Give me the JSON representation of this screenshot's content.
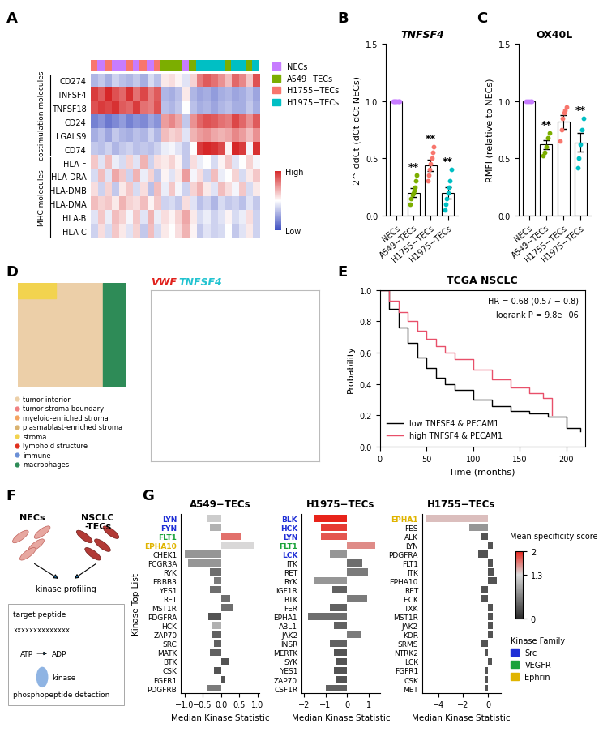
{
  "chart_data": [
    {
      "panel": "A",
      "type": "heatmap",
      "rows": [
        "CD274",
        "TNFSF4",
        "TNFSF18",
        "CD24",
        "LGALS9",
        "CD74",
        "HLA-F",
        "HLA-DRA",
        "HLA-DMB",
        "HLA-DMA",
        "HLA-B",
        "HLA-C"
      ],
      "columns": [
        "H1755−TECs",
        "NECs",
        "H1755−TECs",
        "NECs",
        "NECs",
        "H1755−TECs",
        "NECs",
        "H1755−TECs",
        "NECs",
        "H1755−TECs",
        "A549−TECs",
        "A549−TECs",
        "A549−TECs",
        "NECs",
        "A549−TECs",
        "H1975−TECs",
        "H1975−TECs",
        "H1975−TECs",
        "H1975−TECs",
        "A549−TECs",
        "H1975−TECs",
        "H1975−TECs",
        "A549−TECs",
        "H1975−TECs"
      ],
      "cells": [
        [
          -0.8,
          -0.6,
          -0.9,
          -0.5,
          -0.7,
          -0.8,
          -0.6,
          -0.9,
          -0.4,
          -0.7,
          0.2,
          0.3,
          0.1,
          -0.3,
          0.4,
          1.2,
          1.5,
          1.3,
          1.0,
          0.6,
          1.4,
          1.1,
          0.5,
          1.6
        ],
        [
          1.8,
          1.5,
          2.0,
          1.6,
          1.4,
          1.9,
          1.3,
          1.7,
          1.2,
          1.5,
          -0.8,
          -0.9,
          -0.7,
          0.2,
          -0.8,
          -1.0,
          -0.9,
          -1.1,
          -0.9,
          -0.8,
          -1.0,
          -0.9,
          -0.7,
          -1.0
        ],
        [
          1.6,
          1.8,
          1.7,
          1.9,
          1.5,
          1.4,
          1.8,
          1.3,
          1.2,
          1.6,
          -0.7,
          -0.8,
          -0.6,
          0.0,
          -0.7,
          -0.9,
          -0.8,
          -1.0,
          -0.8,
          -0.7,
          -0.9,
          -0.9,
          -0.6,
          -0.9
        ],
        [
          -1.4,
          -1.2,
          -1.5,
          -1.3,
          -1.1,
          -1.4,
          -1.2,
          -1.3,
          -1.0,
          -1.2,
          0.9,
          1.1,
          0.8,
          -0.6,
          1.0,
          1.4,
          1.6,
          1.5,
          1.3,
          1.2,
          1.7,
          1.4,
          1.0,
          1.5
        ],
        [
          -0.9,
          -0.7,
          -1.0,
          -0.6,
          -0.8,
          -0.9,
          -0.7,
          -0.8,
          -0.5,
          -0.8,
          0.6,
          0.4,
          0.5,
          -0.3,
          0.7,
          0.9,
          1.0,
          0.8,
          0.7,
          0.8,
          1.1,
          0.9,
          0.6,
          1.0
        ],
        [
          -0.6,
          -0.7,
          -0.5,
          -0.8,
          -0.6,
          -0.5,
          -0.7,
          -0.6,
          -0.7,
          -0.5,
          -0.2,
          -0.1,
          -0.3,
          -0.6,
          0.0,
          1.8,
          2.0,
          1.9,
          1.7,
          0.1,
          2.0,
          1.8,
          -0.1,
          1.9
        ],
        [
          0.5,
          -0.3,
          0.6,
          -0.2,
          -0.4,
          0.4,
          -0.3,
          0.7,
          -0.5,
          0.3,
          0.2,
          0.4,
          0.1,
          -0.6,
          0.3,
          -0.2,
          0.0,
          -0.4,
          0.1,
          0.5,
          -0.3,
          0.0,
          0.4,
          -0.1
        ],
        [
          -0.4,
          0.6,
          -0.3,
          0.8,
          0.5,
          -0.5,
          0.7,
          -0.2,
          0.4,
          -0.6,
          0.1,
          -0.3,
          0.2,
          0.9,
          -0.1,
          0.3,
          -0.5,
          0.6,
          -0.2,
          0.0,
          0.4,
          -0.4,
          0.2,
          0.5
        ],
        [
          0.3,
          -0.5,
          0.4,
          -0.6,
          0.2,
          0.5,
          -0.4,
          0.3,
          -0.7,
          0.6,
          -0.2,
          0.5,
          -0.1,
          -0.5,
          0.4,
          0.7,
          0.2,
          -0.3,
          0.6,
          0.3,
          -0.1,
          0.5,
          -0.4,
          0.2
        ],
        [
          0.6,
          0.4,
          0.5,
          0.2,
          0.7,
          0.4,
          0.3,
          0.6,
          0.1,
          0.5,
          -0.5,
          -0.4,
          -0.6,
          0.3,
          -0.3,
          -0.7,
          -0.5,
          -0.8,
          -0.4,
          -0.6,
          -0.5,
          -0.7,
          -0.3,
          -0.6
        ],
        [
          -0.3,
          0.5,
          -0.2,
          0.6,
          0.4,
          -0.1,
          0.5,
          -0.3,
          0.7,
          -0.2,
          0.3,
          0.1,
          0.4,
          0.8,
          0.2,
          -0.4,
          -0.2,
          -0.5,
          -0.3,
          0.1,
          -0.4,
          -0.2,
          0.3,
          -0.5
        ],
        [
          -0.5,
          0.3,
          -0.4,
          0.5,
          0.2,
          -0.3,
          0.4,
          -0.6,
          0.6,
          -0.4,
          0.2,
          0.0,
          0.3,
          0.7,
          0.1,
          -0.6,
          -0.3,
          -0.5,
          -0.4,
          0.0,
          -0.6,
          -0.3,
          0.2,
          -0.5
        ]
      ],
      "row_groups": [
        {
          "name": "costimulation molecules",
          "from": "CD274",
          "to": "CD74"
        },
        {
          "name": "MHC molecules",
          "from": "HLA-F",
          "to": "HLA-C"
        }
      ],
      "group_colors": [
        {
          "name": "NECs",
          "color": "#C77CFF"
        },
        {
          "name": "A549−TECs",
          "color": "#7CAE00"
        },
        {
          "name": "H1755−TECs",
          "color": "#F8766D"
        },
        {
          "name": "H1975−TECs",
          "color": "#00BFC4"
        }
      ],
      "colorbar": {
        "range": [
          -2,
          2
        ],
        "ticks": [
          {
            "value": 2,
            "label": "High"
          },
          {
            "value": -2,
            "label": "Low"
          }
        ]
      }
    },
    {
      "panel": "B",
      "type": "bar",
      "title": "TNFSF4",
      "y_label": "2^-ddCt (dCt-dCt NECs)",
      "categories": [
        "NECs",
        "A549−TECs",
        "H1755−TECs",
        "H1975−TECs"
      ],
      "values": [
        1.0,
        0.2,
        0.44,
        0.2
      ],
      "errors": [
        0,
        0.04,
        0.05,
        0.05
      ],
      "points": [
        [
          1.0,
          1.0,
          1.0,
          1.0,
          1.0,
          1.0,
          1.0,
          1.0
        ],
        [
          0.1,
          0.15,
          0.18,
          0.2,
          0.22,
          0.25,
          0.3,
          0.35
        ],
        [
          0.3,
          0.35,
          0.4,
          0.45,
          0.5,
          0.55,
          0.6
        ],
        [
          0.05,
          0.1,
          0.15,
          0.2,
          0.25,
          0.3,
          0.4
        ]
      ],
      "colors": [
        "#C77CFF",
        "#7CAE00",
        "#F8766D",
        "#00BFC4"
      ],
      "annotations": [
        null,
        "**",
        "**",
        "**"
      ],
      "ylim": [
        0,
        1.5
      ],
      "yticks": [
        {
          "value": 0,
          "label": "0.0"
        },
        {
          "value": 0.5,
          "label": "0.5"
        },
        {
          "value": 1.0,
          "label": "1.0"
        },
        {
          "value": 1.5,
          "label": "1.5"
        }
      ]
    },
    {
      "panel": "C",
      "type": "bar",
      "title": "OX40L",
      "y_label": "RMFI (relative to NECs)",
      "categories": [
        "NECs",
        "A549−TECs",
        "H1755−TECs",
        "H1975−TECs"
      ],
      "values": [
        1.0,
        0.62,
        0.82,
        0.64
      ],
      "errors": [
        0,
        0.04,
        0.06,
        0.08
      ],
      "points": [
        [
          1.0,
          1.0,
          1.0,
          1.0,
          1.0
        ],
        [
          0.52,
          0.55,
          0.6,
          0.68,
          0.72
        ],
        [
          0.65,
          0.75,
          0.85,
          0.9,
          0.92,
          0.95
        ],
        [
          0.42,
          0.5,
          0.62,
          0.75,
          0.85
        ]
      ],
      "colors": [
        "#C77CFF",
        "#7CAE00",
        "#F8766D",
        "#00BFC4"
      ],
      "annotations": [
        null,
        "**",
        null,
        "**"
      ],
      "ylim": [
        0,
        1.5
      ],
      "yticks": [
        {
          "value": 0,
          "label": "0.0"
        },
        {
          "value": 0.5,
          "label": "0.5"
        },
        {
          "value": 1.0,
          "label": "1.0"
        },
        {
          "value": 1.5,
          "label": "1.5"
        }
      ]
    },
    {
      "panel": "E",
      "type": "line",
      "title": "TCGA NSCLC",
      "annotations": [
        "HR = 0.68 (0.57 − 0.8)",
        "logrank P = 9.8e−06"
      ],
      "x_label": "Time (months)",
      "y_label": "Probability",
      "series": [
        {
          "name": "low TNFSF4 & PECAM1",
          "color": "#000000",
          "line_style": "steps",
          "x": [
            0,
            10,
            20,
            30,
            40,
            50,
            60,
            70,
            80,
            100,
            120,
            140,
            160,
            180,
            200,
            215
          ],
          "values": [
            1.0,
            0.88,
            0.76,
            0.66,
            0.57,
            0.5,
            0.44,
            0.4,
            0.36,
            0.3,
            0.26,
            0.23,
            0.21,
            0.19,
            0.12,
            0.1
          ]
        },
        {
          "name": "high TNFSF4 & PECAM1",
          "color": "#E8506A",
          "line_style": "steps",
          "x": [
            0,
            10,
            20,
            30,
            40,
            50,
            60,
            70,
            80,
            100,
            120,
            140,
            160,
            175,
            185
          ],
          "values": [
            1.0,
            0.93,
            0.86,
            0.8,
            0.74,
            0.69,
            0.64,
            0.6,
            0.56,
            0.49,
            0.43,
            0.38,
            0.34,
            0.31,
            0.2
          ]
        }
      ],
      "xlim": [
        0,
        220
      ],
      "xticks": [
        0,
        50,
        100,
        150,
        200
      ],
      "ylim": [
        0,
        1.0
      ],
      "yticks": [
        {
          "value": 0,
          "label": "0.0"
        },
        {
          "value": 0.2,
          "label": "0.2"
        },
        {
          "value": 0.4,
          "label": "0.4"
        },
        {
          "value": 0.6,
          "label": "0.6"
        },
        {
          "value": 0.8,
          "label": "0.8"
        },
        {
          "value": 1.0,
          "label": "1.0"
        }
      ],
      "legend": "lower left"
    },
    {
      "panel": "G",
      "type": "bar",
      "orientation": "horizontal",
      "title": "A549−TECs",
      "x_label": "Median Kinase Statistic",
      "y_label": "Kinase Top List",
      "categories": [
        "LYN",
        "FYN",
        "FLT1",
        "EPHA10",
        "CHEK1",
        "FCGR3A",
        "RYK",
        "ERBB3",
        "YES1",
        "RET",
        "MST1R",
        "PDGFRA",
        "HCK",
        "ZAP70",
        "SRC",
        "MATK",
        "BTK",
        "CSK",
        "FGFR1",
        "PDGFRB"
      ],
      "values": [
        -0.4,
        -0.3,
        0.55,
        0.9,
        -1.0,
        -0.9,
        -0.3,
        -0.2,
        -0.3,
        0.25,
        0.35,
        -0.35,
        -0.25,
        -0.25,
        -0.2,
        -0.3,
        0.2,
        -0.2,
        0.1,
        -0.4
      ],
      "scores": [
        1.2,
        1.0,
        1.7,
        1.3,
        0.8,
        0.8,
        0.5,
        0.6,
        0.5,
        0.5,
        0.5,
        0.3,
        1.0,
        0.4,
        0.4,
        0.4,
        0.3,
        0.3,
        0.3,
        0.6
      ],
      "families": [
        "Src",
        "Src",
        "VEGFR",
        "Ephrin",
        null,
        null,
        null,
        null,
        null,
        null,
        null,
        null,
        null,
        null,
        null,
        null,
        null,
        null,
        null,
        null
      ],
      "xlim": [
        -1.1,
        1.05
      ],
      "xticks": [
        {
          "value": -1.0,
          "label": "−1.0"
        },
        {
          "value": -0.5,
          "label": "−0.5"
        },
        {
          "value": 0.0,
          "label": "0.0"
        },
        {
          "value": 0.5,
          "label": "0.5"
        },
        {
          "value": 1.0,
          "label": "1.0"
        }
      ]
    },
    {
      "type": "bar",
      "orientation": "horizontal",
      "title": "H1975−TECs",
      "x_label": "Median Kinase Statistic",
      "categories": [
        "BLK",
        "HCK",
        "LYN",
        "FLT1",
        "LCK",
        "ITK",
        "RET",
        "RYK",
        "IGF1R",
        "BTK",
        "FER",
        "EPHA1",
        "ABL1",
        "JAK2",
        "INSR",
        "MERTK",
        "SYK",
        "YES1",
        "ZAP70",
        "CSF1R"
      ],
      "values": [
        -1.5,
        -1.2,
        -1.2,
        1.3,
        -0.8,
        0.7,
        0.95,
        -1.5,
        -0.7,
        0.9,
        -0.8,
        -1.8,
        -0.6,
        0.6,
        -0.8,
        -0.6,
        -0.5,
        -0.6,
        -0.5,
        -1.0
      ],
      "scores": [
        2.0,
        1.9,
        1.8,
        1.6,
        0.8,
        0.5,
        0.6,
        0.8,
        0.4,
        0.6,
        0.4,
        0.5,
        0.4,
        0.6,
        0.4,
        0.3,
        0.3,
        0.3,
        0.3,
        0.4
      ],
      "families": [
        "Src",
        "Src",
        "Src",
        "VEGFR",
        "Src",
        null,
        null,
        null,
        null,
        null,
        null,
        null,
        null,
        null,
        null,
        null,
        null,
        null,
        null,
        null
      ],
      "xlim": [
        -2.1,
        1.5
      ],
      "xticks": [
        {
          "value": -2,
          "label": "−2"
        },
        {
          "value": -1,
          "label": "−1"
        },
        0,
        1
      ]
    },
    {
      "type": "bar",
      "orientation": "horizontal",
      "title": "H1755−TECs",
      "x_label": "Median Kinase Statistic",
      "categories": [
        "EPHA1",
        "FES",
        "ALK",
        "LYN",
        "PDGFRA",
        "FLT1",
        "ITK",
        "EPHA10",
        "RET",
        "HCK",
        "TXK",
        "MST1R",
        "JAK2",
        "KDR",
        "SRMS",
        "NTRK2",
        "LCK",
        "FGFR1",
        "CSK",
        "MET"
      ],
      "values": [
        -5.0,
        -1.5,
        -0.6,
        0.4,
        -0.8,
        0.4,
        0.5,
        0.7,
        -0.5,
        -0.5,
        0.4,
        0.4,
        0.4,
        0.4,
        -0.5,
        -0.3,
        0.3,
        -0.3,
        -0.3,
        -0.3
      ],
      "scores": [
        1.4,
        0.8,
        0.3,
        0.3,
        0.3,
        0.3,
        0.3,
        0.3,
        0.3,
        0.3,
        0.3,
        0.3,
        0.3,
        0.3,
        0.3,
        0.3,
        0.3,
        0.3,
        0.3,
        0.3
      ],
      "families": [
        "Ephrin",
        null,
        null,
        null,
        null,
        null,
        null,
        null,
        null,
        null,
        null,
        null,
        null,
        null,
        null,
        null,
        null,
        null,
        null,
        null
      ],
      "xlim": [
        -5.3,
        1.0
      ],
      "xticks": [
        {
          "value": -4,
          "label": "−4"
        },
        {
          "value": -2,
          "label": "−2"
        },
        0
      ]
    }
  ],
  "specificity_colorbar": {
    "title": "Mean specificity score",
    "range": [
      0,
      2
    ],
    "ticks": [
      0,
      1.3,
      2
    ]
  },
  "kinase_families": {
    "title": "Kinase Family",
    "items": [
      {
        "name": "Src",
        "color": "#1f2fd6"
      },
      {
        "name": "VEGFR",
        "color": "#1aa33a"
      },
      {
        "name": "Ephrin",
        "color": "#e0b400"
      }
    ]
  },
  "spatial_map": {
    "panel": "D",
    "legend": [
      {
        "name": "tumor interior",
        "color": "#ECCFA8"
      },
      {
        "name": "tumor-stroma boundary",
        "color": "#F08080"
      },
      {
        "name": "myeloid-enriched stroma",
        "color": "#F4A460"
      },
      {
        "name": "plasmablast-enriched stroma",
        "color": "#D9B26F"
      },
      {
        "name": "stroma",
        "color": "#F2D34F"
      },
      {
        "name": "lymphoid structure",
        "color": "#E0301E"
      },
      {
        "name": "immune",
        "color": "#6A8FD6"
      },
      {
        "name": "macrophages",
        "color": "#2E8B57"
      }
    ],
    "genes": [
      {
        "name": "VWF",
        "color": "#E0201B"
      },
      {
        "name": "TNFSF4",
        "color": "#22C3D0"
      }
    ]
  },
  "diagram": {
    "panel": "F",
    "cells": [
      "NECs",
      "NSCLC\n-TECs"
    ],
    "step": "kinase profiling",
    "peptide": {
      "label": "target peptide",
      "sequence": "xxxxxxxxxxxxxx"
    },
    "cofactors": [
      "ATP",
      "ADP"
    ],
    "enzyme": "kinase",
    "readout": "phosphopeptide detection"
  }
}
